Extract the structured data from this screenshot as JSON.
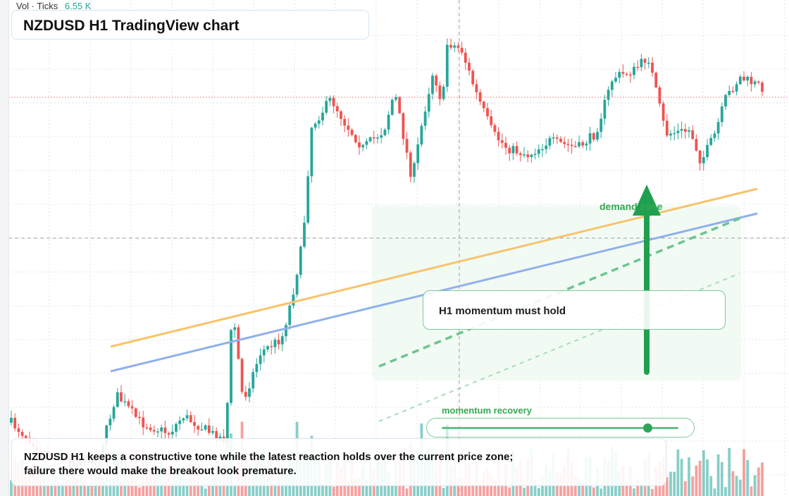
{
  "chart": {
    "title": "NZDUSD H1 TradingView chart",
    "volume_legend": {
      "label": "Vol · Ticks",
      "value": "6.55 K"
    },
    "callout": "H1 momentum must hold",
    "zone_label": "demand zone",
    "momentum": {
      "label": "momentum recovery",
      "level": 0.87
    },
    "summary": "NZDUSD H1 keeps a constructive tone while the latest reaction holds over the current price zone; failure there would make the breakout look premature.",
    "colors": {
      "up": "#26a69a",
      "down": "#ef5350",
      "accent_green": "#34a853",
      "line_orange": "#f7c36b",
      "line_blue": "#8fb0ec"
    }
  }
}
